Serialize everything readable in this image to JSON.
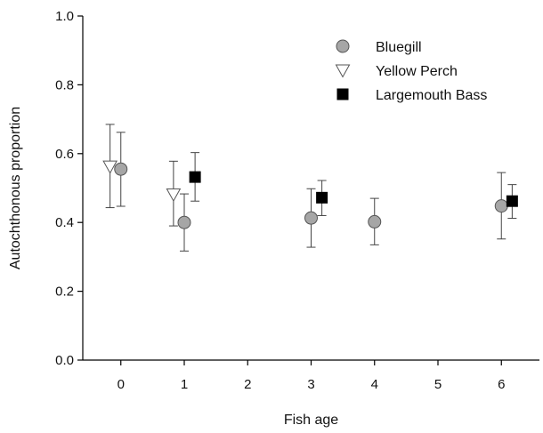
{
  "chart_data": {
    "type": "scatter",
    "xlabel": "Fish age",
    "ylabel": "Autochthonous proportion",
    "xlim": [
      -0.6,
      6.6
    ],
    "ylim": [
      0,
      1.0
    ],
    "x_ticks": [
      "0",
      "1",
      "2",
      "3",
      "4",
      "5",
      "6"
    ],
    "y_ticks": [
      "0.0",
      "0.2",
      "0.4",
      "0.6",
      "0.8",
      "1.0"
    ],
    "grid": false,
    "legend_position": "top-right",
    "series": [
      {
        "name": "Bluegill",
        "marker": "circle",
        "color": "#a6a6a6",
        "points": [
          {
            "x": 0,
            "y": 0.555,
            "lo": 0.447,
            "hi": 0.662
          },
          {
            "x": 1,
            "y": 0.4,
            "lo": 0.317,
            "hi": 0.483
          },
          {
            "x": 3,
            "y": 0.413,
            "lo": 0.328,
            "hi": 0.498
          },
          {
            "x": 4,
            "y": 0.402,
            "lo": 0.335,
            "hi": 0.47
          },
          {
            "x": 6,
            "y": 0.448,
            "lo": 0.352,
            "hi": 0.545
          }
        ]
      },
      {
        "name": "Yellow Perch",
        "marker": "triangle-down",
        "color": "#ffffff",
        "points": [
          {
            "x": 0,
            "y": 0.563,
            "lo": 0.443,
            "hi": 0.685
          },
          {
            "x": 1,
            "y": 0.482,
            "lo": 0.39,
            "hi": 0.578
          }
        ]
      },
      {
        "name": "Largemouth Bass",
        "marker": "square",
        "color": "#000000",
        "points": [
          {
            "x": 1,
            "y": 0.532,
            "lo": 0.462,
            "hi": 0.603
          },
          {
            "x": 3,
            "y": 0.472,
            "lo": 0.42,
            "hi": 0.522
          },
          {
            "x": 6,
            "y": 0.462,
            "lo": 0.412,
            "hi": 0.51
          }
        ]
      }
    ]
  }
}
